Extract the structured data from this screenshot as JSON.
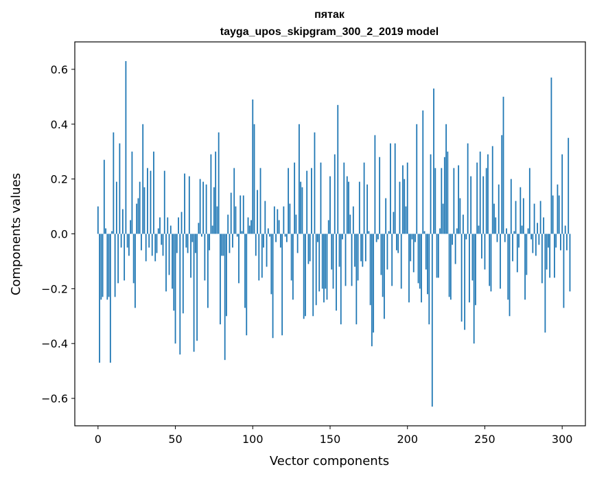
{
  "chart_data": {
    "type": "bar",
    "title": "пятак",
    "subtitle": "tayga_upos_skipgram_300_2_2019 model",
    "xlabel": "Vector components",
    "ylabel": "Components values",
    "xlim": [
      -15,
      315
    ],
    "ylim": [
      -0.7,
      0.7
    ],
    "xticks": [
      0,
      50,
      100,
      150,
      200,
      250,
      300
    ],
    "yticks": [
      -0.6,
      -0.4,
      -0.2,
      0.0,
      0.2,
      0.4,
      0.6
    ],
    "ytick_labels": [
      "−0.6",
      "−0.4",
      "−0.2",
      "0.0",
      "0.2",
      "0.4",
      "0.6"
    ],
    "grid": false,
    "bar_color": "#1f77b4",
    "values": [
      0.1,
      -0.47,
      -0.24,
      -0.23,
      0.27,
      0.02,
      -0.24,
      -0.23,
      -0.47,
      0.01,
      0.37,
      -0.23,
      0.19,
      -0.18,
      0.33,
      -0.05,
      0.09,
      -0.17,
      0.63,
      -0.05,
      -0.08,
      0.05,
      0.3,
      -0.18,
      -0.27,
      0.11,
      0.13,
      0.19,
      -0.06,
      0.4,
      0.17,
      -0.1,
      0.24,
      -0.05,
      0.23,
      -0.08,
      0.3,
      -0.1,
      -0.07,
      0.02,
      0.06,
      -0.04,
      -0.08,
      0.23,
      -0.21,
      0.06,
      -0.15,
      0.03,
      -0.2,
      -0.28,
      -0.4,
      -0.07,
      0.06,
      -0.44,
      0.08,
      -0.29,
      0.22,
      -0.05,
      -0.07,
      0.21,
      -0.16,
      -0.03,
      -0.43,
      -0.07,
      -0.39,
      0.04,
      0.2,
      -0.01,
      0.19,
      -0.17,
      0.18,
      -0.27,
      -0.06,
      0.29,
      0.03,
      0.17,
      0.3,
      0.1,
      0.37,
      -0.33,
      -0.08,
      -0.08,
      -0.46,
      -0.3,
      0.07,
      -0.07,
      0.15,
      -0.05,
      0.24,
      0.1,
      -0.01,
      -0.18,
      0.14,
      0.01,
      0.14,
      -0.27,
      -0.37,
      0.06,
      0.03,
      0.05,
      0.49,
      0.4,
      -0.08,
      0.16,
      -0.17,
      0.24,
      -0.16,
      -0.05,
      0.12,
      -0.12,
      0.02,
      -0.01,
      -0.22,
      -0.38,
      0.1,
      -0.03,
      0.09,
      0.05,
      -0.05,
      -0.37,
      0.1,
      -0.01,
      -0.03,
      0.24,
      0.11,
      -0.17,
      -0.24,
      0.26,
      0.07,
      -0.07,
      0.4,
      0.19,
      0.17,
      -0.31,
      -0.3,
      0.23,
      -0.11,
      -0.1,
      0.24,
      -0.3,
      0.37,
      -0.26,
      -0.03,
      -0.21,
      0.26,
      -0.2,
      -0.25,
      -0.2,
      -0.24,
      0.05,
      0.21,
      -0.13,
      -0.2,
      0.29,
      -0.28,
      0.47,
      -0.12,
      -0.33,
      -0.02,
      0.26,
      -0.19,
      0.21,
      0.19,
      0.07,
      -0.19,
      0.1,
      -0.12,
      -0.33,
      -0.17,
      0.19,
      -0.1,
      -0.12,
      0.26,
      -0.1,
      0.18,
      0.01,
      -0.26,
      -0.41,
      -0.36,
      0.36,
      -0.03,
      -0.02,
      0.28,
      -0.15,
      -0.23,
      -0.31,
      0.13,
      -0.13,
      0.01,
      0.33,
      -0.19,
      0.08,
      0.33,
      -0.06,
      -0.07,
      0.19,
      -0.2,
      0.25,
      0.2,
      0.1,
      0.26,
      -0.25,
      -0.1,
      -0.02,
      -0.14,
      -0.03,
      0.4,
      -0.18,
      -0.2,
      -0.25,
      0.45,
      0.01,
      -0.13,
      -0.22,
      -0.33,
      0.29,
      -0.63,
      0.53,
      0.24,
      -0.16,
      -0.16,
      0.02,
      0.24,
      0.11,
      0.28,
      0.4,
      0.3,
      -0.23,
      -0.24,
      -0.04,
      0.24,
      -0.11,
      0.02,
      0.25,
      0.13,
      -0.32,
      0.07,
      -0.35,
      -0.02,
      0.33,
      -0.25,
      0.21,
      -0.17,
      -0.4,
      -0.26,
      0.26,
      0.03,
      0.3,
      -0.09,
      0.21,
      -0.13,
      0.24,
      0.29,
      -0.19,
      -0.21,
      0.32,
      0.11,
      0.06,
      -0.03,
      0.18,
      -0.2,
      0.36,
      0.5,
      -0.03,
      0.02,
      -0.24,
      -0.3,
      0.2,
      -0.1,
      0.01,
      0.12,
      -0.14,
      -0.05,
      0.17,
      0.03,
      0.13,
      -0.24,
      -0.15,
      0.02,
      0.24,
      -0.02,
      -0.07,
      0.11,
      -0.08,
      0.04,
      -0.04,
      0.12,
      -0.18,
      0.06,
      -0.36,
      -0.13,
      -0.05,
      -0.16,
      0.57,
      0.14,
      -0.16,
      -0.05,
      0.18,
      0.14,
      -0.06,
      0.29,
      -0.27,
      0.03,
      -0.06,
      0.35,
      -0.21
    ]
  }
}
